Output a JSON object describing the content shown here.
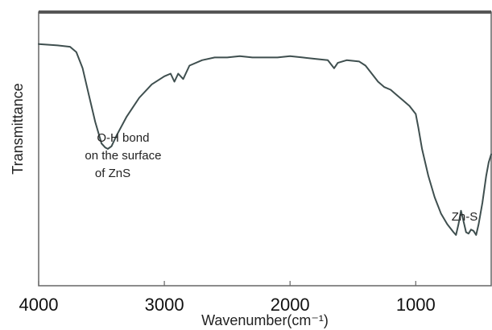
{
  "chart_data": {
    "type": "line",
    "title": "",
    "xlabel": "Wavenumber(cm⁻¹)",
    "ylabel": "Transmittance",
    "xlim": [
      4000,
      400
    ],
    "x_reversed": true,
    "ylim": [
      0,
      100
    ],
    "y_ticks_shown": false,
    "grid": false,
    "legend": "none",
    "x_ticks": [
      {
        "value": 4000,
        "label": "4000"
      },
      {
        "value": 3000,
        "label": "3000"
      },
      {
        "value": 2000,
        "label": "2000"
      },
      {
        "value": 1000,
        "label": "1000"
      }
    ],
    "series": [
      {
        "color": "#3f4f4f",
        "points": [
          [
            4000,
            89
          ],
          [
            3850,
            88.5
          ],
          [
            3750,
            88
          ],
          [
            3700,
            86
          ],
          [
            3650,
            80
          ],
          [
            3600,
            70
          ],
          [
            3550,
            60
          ],
          [
            3500,
            52
          ],
          [
            3470,
            50.5
          ],
          [
            3450,
            50
          ],
          [
            3420,
            51
          ],
          [
            3380,
            55
          ],
          [
            3300,
            62
          ],
          [
            3200,
            69
          ],
          [
            3100,
            74
          ],
          [
            3000,
            77
          ],
          [
            2950,
            78
          ],
          [
            2920,
            75
          ],
          [
            2890,
            78
          ],
          [
            2850,
            76
          ],
          [
            2800,
            81
          ],
          [
            2700,
            83
          ],
          [
            2600,
            84
          ],
          [
            2500,
            84
          ],
          [
            2400,
            84.5
          ],
          [
            2300,
            84
          ],
          [
            2200,
            84
          ],
          [
            2100,
            84
          ],
          [
            2000,
            84.5
          ],
          [
            1900,
            84
          ],
          [
            1800,
            83.5
          ],
          [
            1700,
            83
          ],
          [
            1650,
            80
          ],
          [
            1620,
            82
          ],
          [
            1550,
            83
          ],
          [
            1450,
            82.5
          ],
          [
            1400,
            81
          ],
          [
            1350,
            78
          ],
          [
            1300,
            75
          ],
          [
            1250,
            73
          ],
          [
            1200,
            72
          ],
          [
            1150,
            70
          ],
          [
            1100,
            68
          ],
          [
            1050,
            66
          ],
          [
            1000,
            63
          ],
          [
            980,
            58
          ],
          [
            950,
            50
          ],
          [
            900,
            40
          ],
          [
            850,
            32
          ],
          [
            800,
            26
          ],
          [
            750,
            22
          ],
          [
            700,
            19
          ],
          [
            680,
            18
          ],
          [
            660,
            22
          ],
          [
            640,
            27
          ],
          [
            620,
            23
          ],
          [
            600,
            19
          ],
          [
            580,
            18.5
          ],
          [
            560,
            20
          ],
          [
            540,
            19.5
          ],
          [
            520,
            18
          ],
          [
            500,
            22
          ],
          [
            470,
            30
          ],
          [
            440,
            40
          ],
          [
            420,
            45
          ],
          [
            400,
            48
          ]
        ]
      }
    ],
    "annotations": [
      {
        "lines": [
          "O-H bond",
          "on the surface",
          "of ZnS"
        ]
      },
      {
        "lines": [
          "Zn-S"
        ]
      }
    ]
  }
}
